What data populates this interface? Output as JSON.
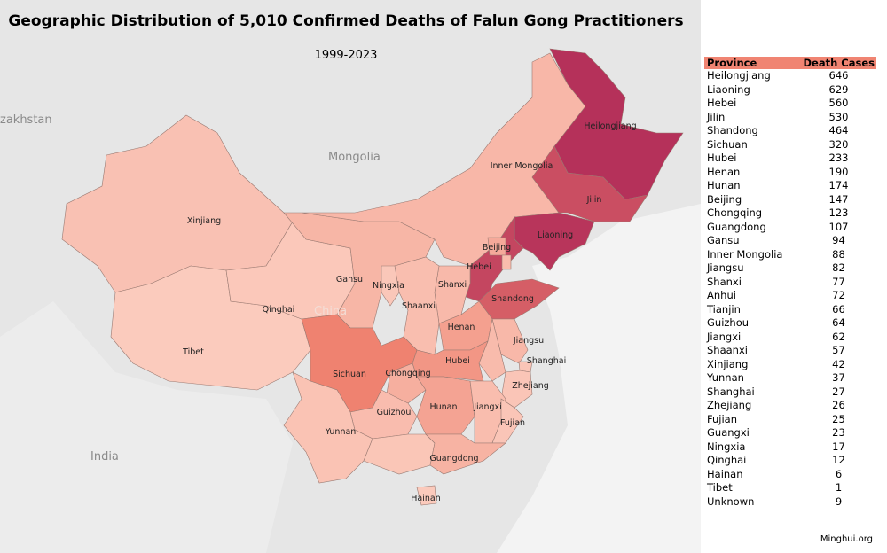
{
  "title": "Geographic Distribution of 5,010 Confirmed Deaths of Falun Gong Practitioners",
  "subtitle": "1999-2023",
  "credit": "Minghui.org",
  "basemap_labels": {
    "mongolia": "Mongolia",
    "kazakhstan": "zakhstan",
    "india": "India",
    "china": "China"
  },
  "colors": {
    "low": "#fbcbbd",
    "mid": "#ef8270",
    "high": "#b5315a",
    "header": "#f08472",
    "land": "#e6e6e6",
    "water": "#f3f3f3"
  },
  "table": {
    "headers": [
      "Province",
      "Death Cases"
    ]
  },
  "chart_data": {
    "type": "choropleth",
    "title": "Geographic Distribution of 5,010 Confirmed Deaths of Falun Gong Practitioners",
    "subtitle": "1999-2023",
    "rows": [
      {
        "province": "Heilongjiang",
        "value": 646
      },
      {
        "province": "Liaoning",
        "value": 629
      },
      {
        "province": "Hebei",
        "value": 560
      },
      {
        "province": "Jilin",
        "value": 530
      },
      {
        "province": "Shandong",
        "value": 464
      },
      {
        "province": "Sichuan",
        "value": 320
      },
      {
        "province": "Hubei",
        "value": 233
      },
      {
        "province": "Henan",
        "value": 190
      },
      {
        "province": "Hunan",
        "value": 174
      },
      {
        "province": "Beijing",
        "value": 147
      },
      {
        "province": "Chongqing",
        "value": 123
      },
      {
        "province": "Guangdong",
        "value": 107
      },
      {
        "province": "Gansu",
        "value": 94
      },
      {
        "province": "Inner Mongolia",
        "value": 88
      },
      {
        "province": "Jiangsu",
        "value": 82
      },
      {
        "province": "Shanxi",
        "value": 77
      },
      {
        "province": "Anhui",
        "value": 72
      },
      {
        "province": "Tianjin",
        "value": 66
      },
      {
        "province": "Guizhou",
        "value": 64
      },
      {
        "province": "Jiangxi",
        "value": 62
      },
      {
        "province": "Shaanxi",
        "value": 57
      },
      {
        "province": "Xinjiang",
        "value": 42
      },
      {
        "province": "Yunnan",
        "value": 37
      },
      {
        "province": "Shanghai",
        "value": 27
      },
      {
        "province": "Zhejiang",
        "value": 26
      },
      {
        "province": "Fujian",
        "value": 25
      },
      {
        "province": "Guangxi",
        "value": 23
      },
      {
        "province": "Ningxia",
        "value": 17
      },
      {
        "province": "Qinghai",
        "value": 12
      },
      {
        "province": "Hainan",
        "value": 6
      },
      {
        "province": "Tibet",
        "value": 1
      },
      {
        "province": "Unknown",
        "value": 9
      }
    ]
  }
}
